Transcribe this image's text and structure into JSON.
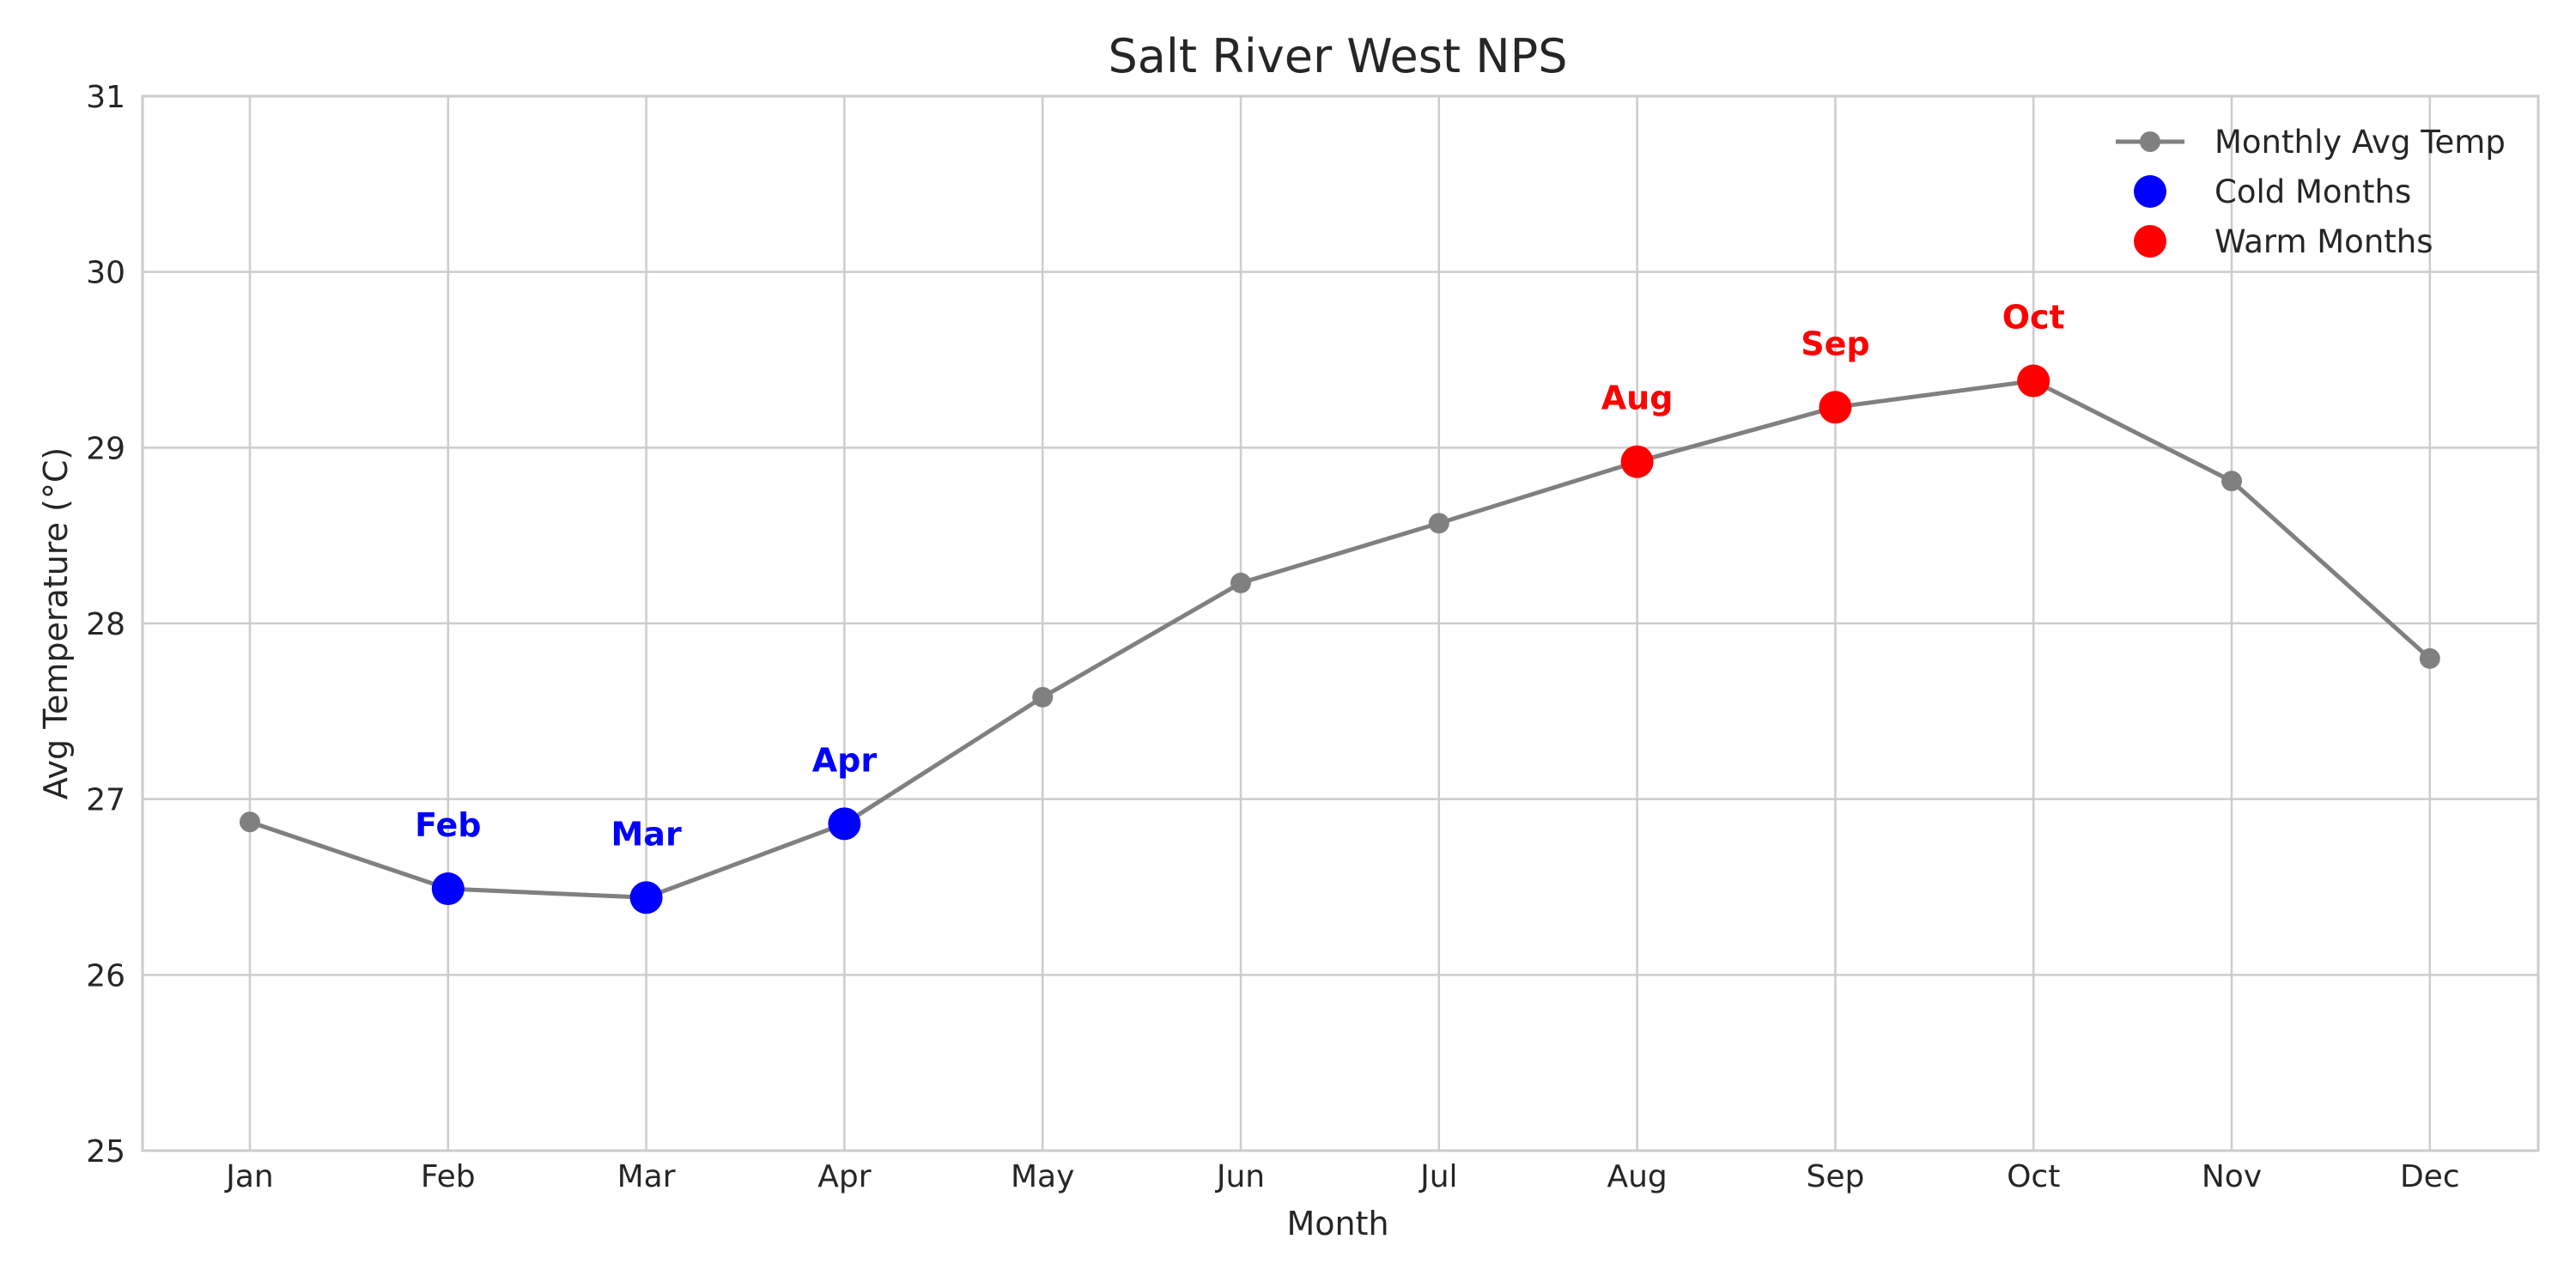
{
  "chart_data": {
    "type": "line",
    "title": "Salt River West NPS",
    "xlabel": "Month",
    "ylabel": "Avg Temperature (°C)",
    "ylim": [
      25,
      31
    ],
    "yticks": [
      "25",
      "26",
      "27",
      "28",
      "29",
      "30",
      "31"
    ],
    "categories": [
      "Jan",
      "Feb",
      "Mar",
      "Apr",
      "May",
      "Jun",
      "Jul",
      "Aug",
      "Sep",
      "Oct",
      "Nov",
      "Dec"
    ],
    "grid": true,
    "legend_position": "top-right",
    "series": [
      {
        "name": "Monthly Avg Temp",
        "kind": "line",
        "color": "#808080",
        "values": [
          26.87,
          26.49,
          26.44,
          26.86,
          27.58,
          28.23,
          28.57,
          28.92,
          29.23,
          29.38,
          28.81,
          27.8
        ]
      },
      {
        "name": "Cold Months",
        "kind": "scatter",
        "color": "#0000ff",
        "categories": [
          "Feb",
          "Mar",
          "Apr"
        ],
        "values": [
          26.49,
          26.44,
          26.86
        ]
      },
      {
        "name": "Warm Months",
        "kind": "scatter",
        "color": "#ff0000",
        "categories": [
          "Aug",
          "Sep",
          "Oct"
        ],
        "values": [
          28.92,
          29.23,
          29.38
        ]
      }
    ],
    "annotations": [
      {
        "text": "Feb",
        "category": "Feb",
        "value": 26.49,
        "color": "#0000ff"
      },
      {
        "text": "Mar",
        "category": "Mar",
        "value": 26.44,
        "color": "#0000ff"
      },
      {
        "text": "Apr",
        "category": "Apr",
        "value": 26.86,
        "color": "#0000ff"
      },
      {
        "text": "Aug",
        "category": "Aug",
        "value": 28.92,
        "color": "#ff0000"
      },
      {
        "text": "Sep",
        "category": "Sep",
        "value": 29.23,
        "color": "#ff0000"
      },
      {
        "text": "Oct",
        "category": "Oct",
        "value": 29.38,
        "color": "#ff0000"
      }
    ]
  }
}
